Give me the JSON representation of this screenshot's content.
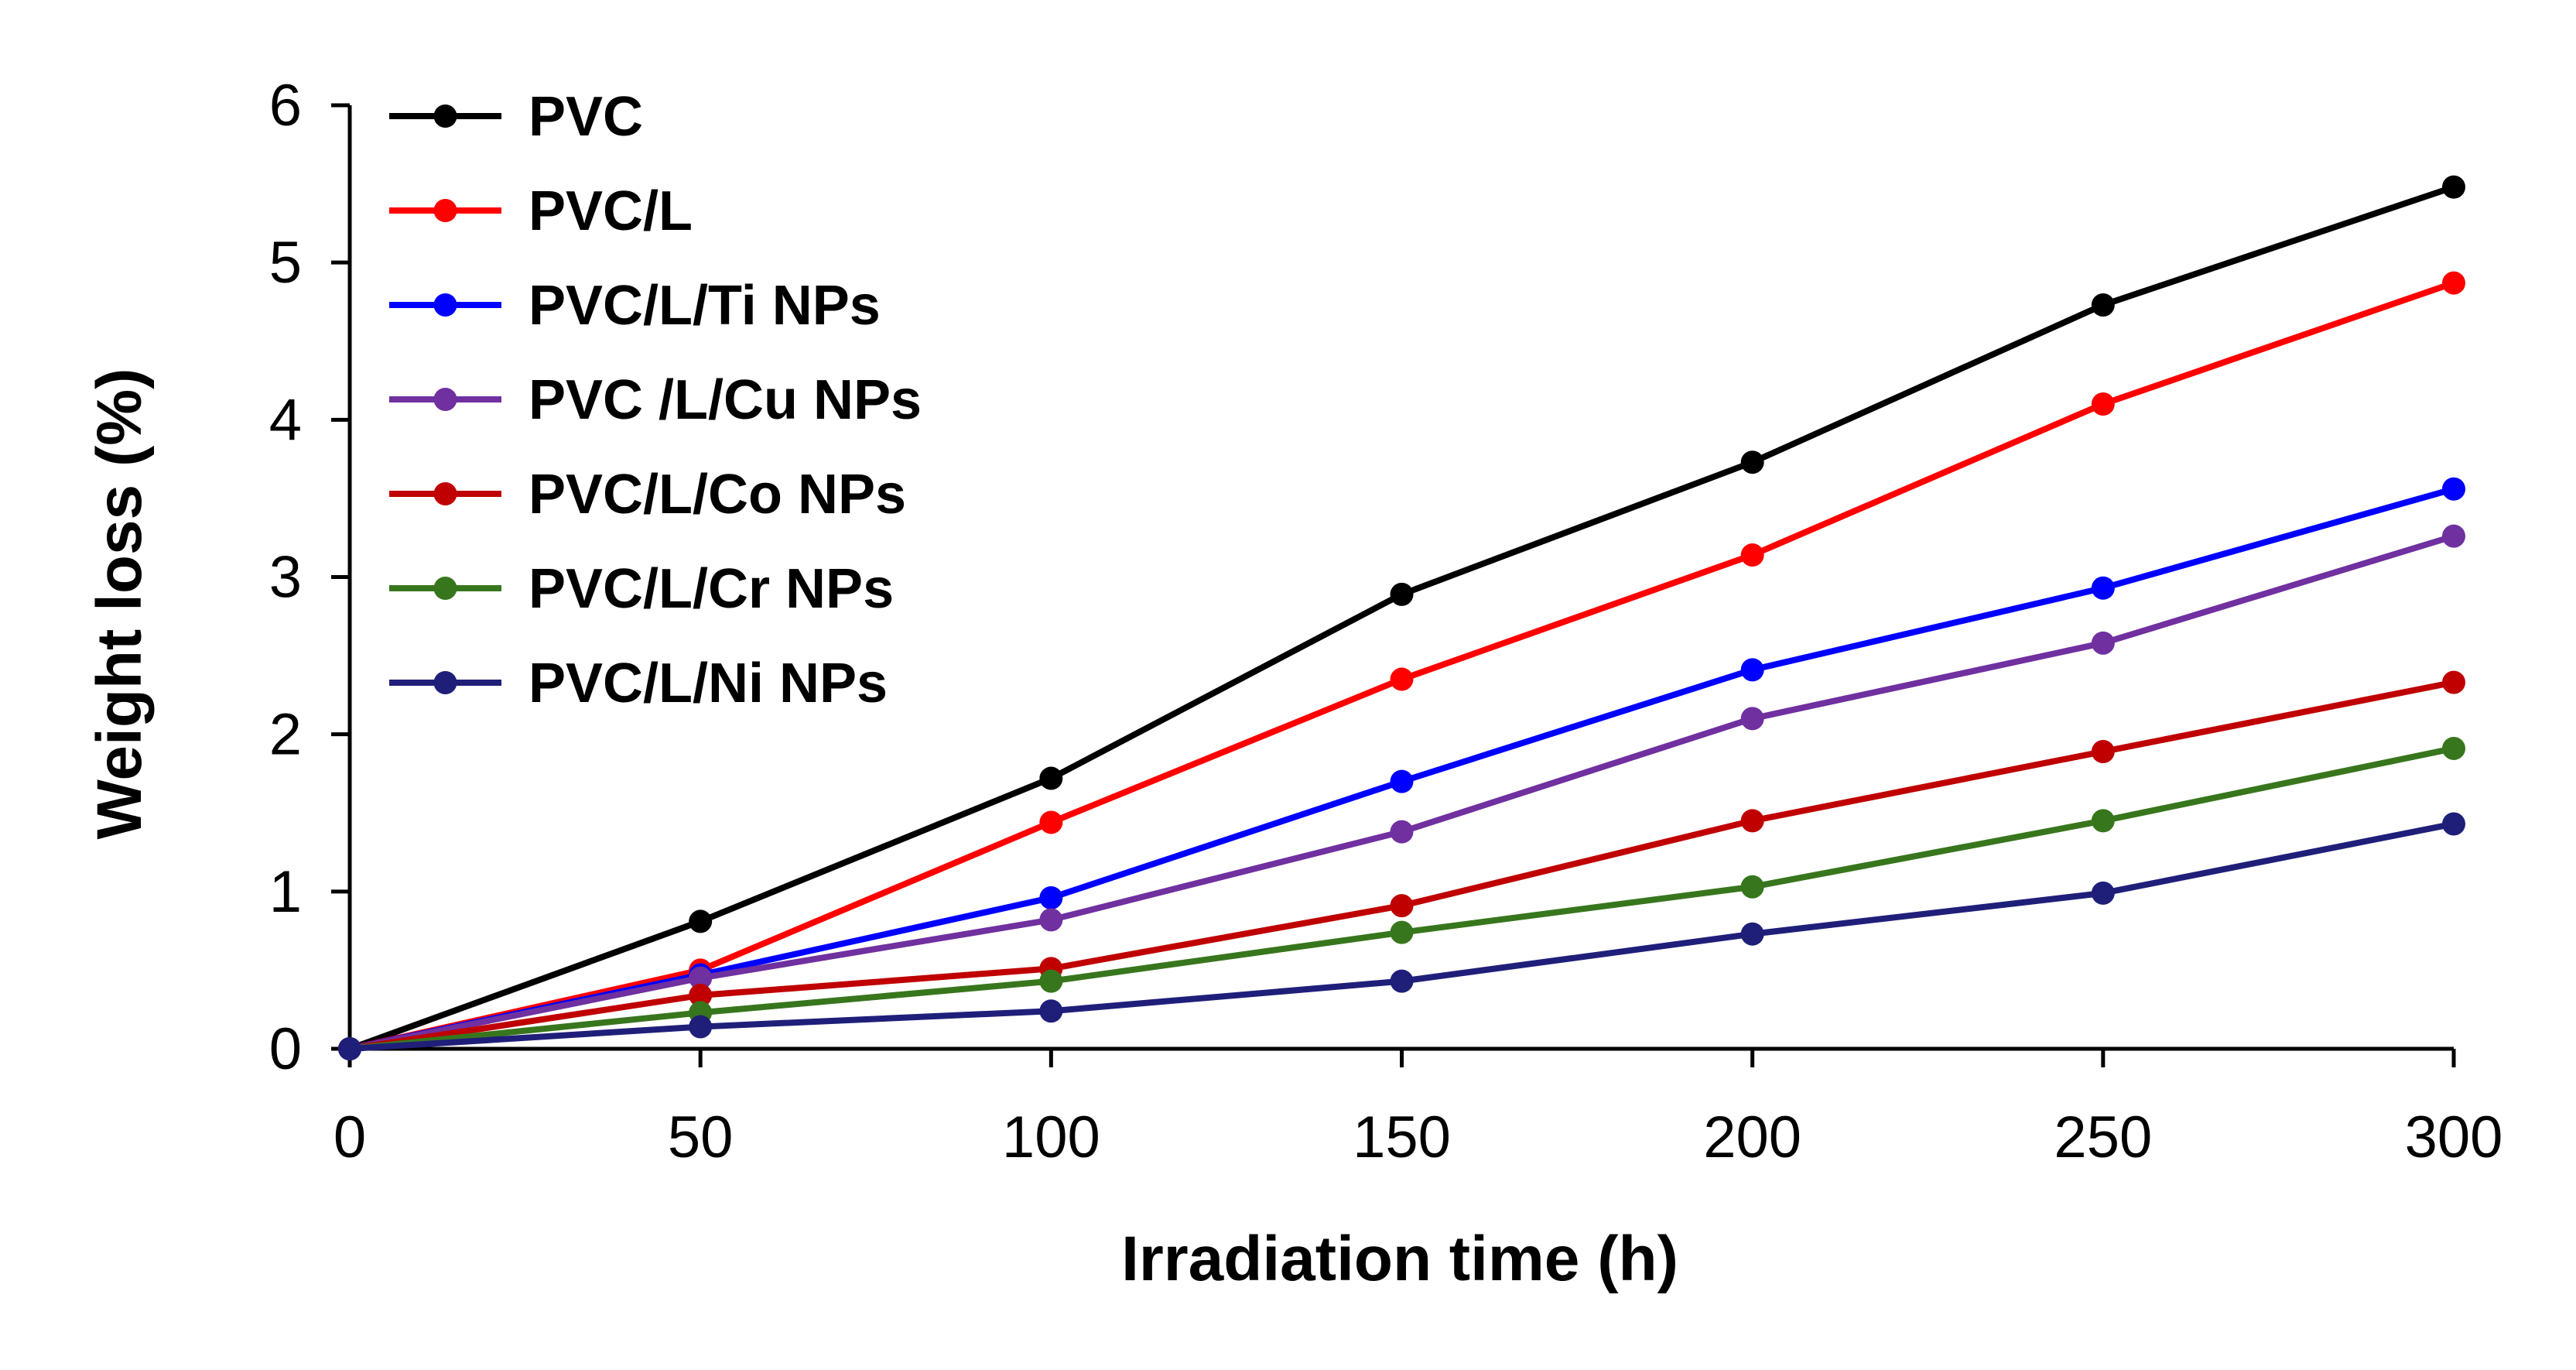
{
  "chart_data": {
    "type": "line",
    "title": "",
    "xlabel": "Irradiation time (h)",
    "ylabel": "Weight loss (%)",
    "xlim": [
      0,
      300
    ],
    "ylim": [
      0,
      6
    ],
    "x": [
      0,
      50,
      100,
      150,
      200,
      250,
      300
    ],
    "x_ticks": [
      "0",
      "50",
      "100",
      "150",
      "200",
      "250",
      "300"
    ],
    "y_ticks": [
      "0",
      "1",
      "2",
      "3",
      "4",
      "5",
      "6"
    ],
    "grid": false,
    "legend_position": "top-left",
    "series": [
      {
        "name": "PVC",
        "color": "#000000",
        "values": [
          0,
          0.81,
          1.72,
          2.89,
          3.73,
          4.73,
          5.48
        ]
      },
      {
        "name": "PVC/L",
        "color": "#ff0000",
        "values": [
          0,
          0.5,
          1.44,
          2.35,
          3.14,
          4.1,
          4.87
        ]
      },
      {
        "name": "PVC/L/Ti NPs",
        "color": "#0000ff",
        "values": [
          0,
          0.47,
          0.96,
          1.7,
          2.41,
          2.93,
          3.56
        ]
      },
      {
        "name": "PVC /L/Cu NPs",
        "color": "#7030a0",
        "values": [
          0,
          0.45,
          0.82,
          1.38,
          2.1,
          2.58,
          3.26
        ]
      },
      {
        "name": "PVC/L/Co NPs",
        "color": "#c00000",
        "values": [
          0,
          0.34,
          0.51,
          0.91,
          1.45,
          1.89,
          2.33
        ]
      },
      {
        "name": "PVC/L/Cr NPs",
        "color": "#38761d",
        "values": [
          0,
          0.23,
          0.43,
          0.74,
          1.03,
          1.45,
          1.91
        ]
      },
      {
        "name": "PVC/L/Ni NPs",
        "color": "#1f1f7a",
        "values": [
          0,
          0.14,
          0.24,
          0.43,
          0.73,
          0.99,
          1.43
        ]
      }
    ]
  }
}
